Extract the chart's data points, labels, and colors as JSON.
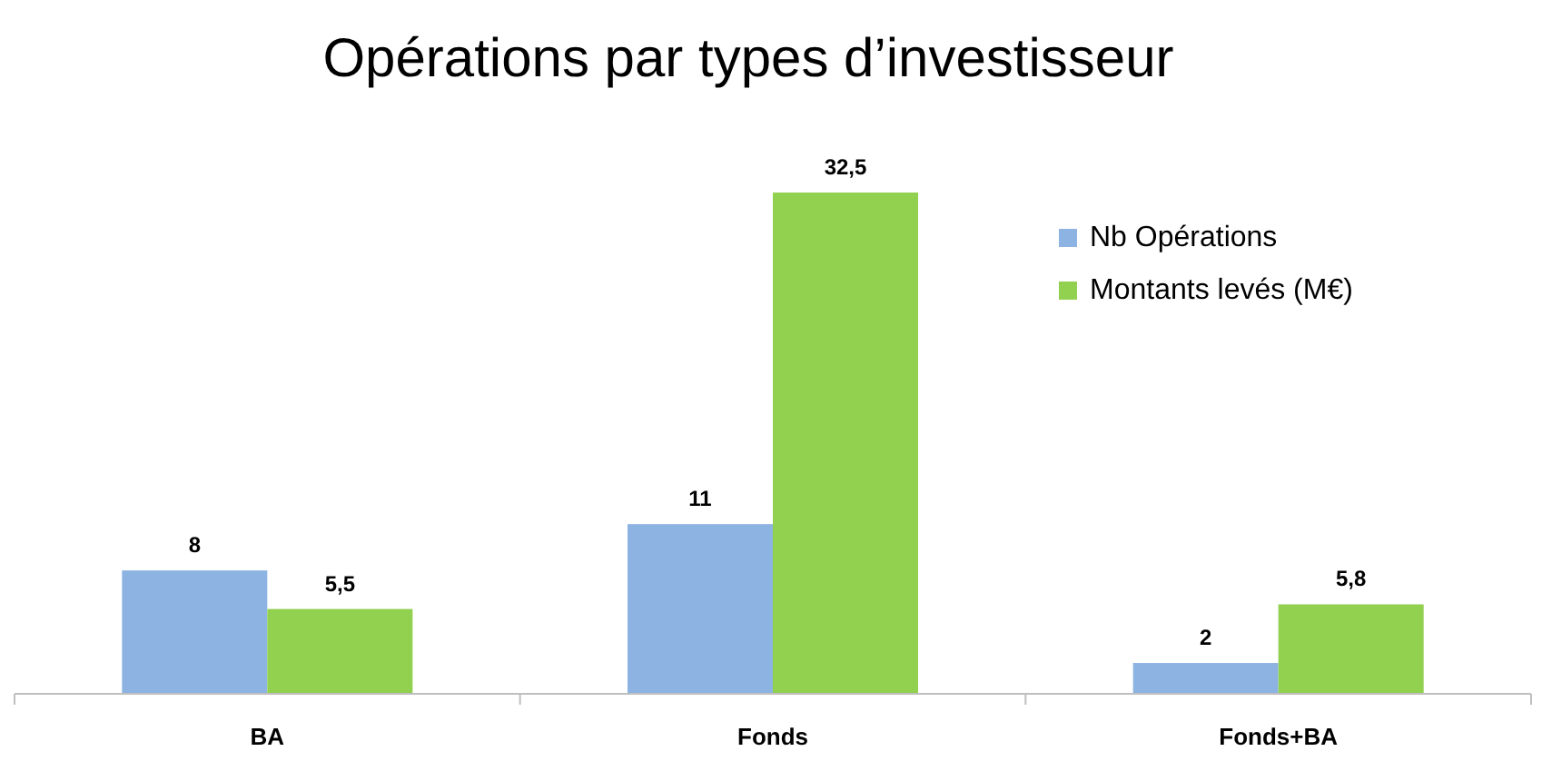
{
  "chart_data": {
    "type": "bar",
    "title": "Opérations par types d’investisseur",
    "categories": [
      "BA",
      "Fonds",
      "Fonds+BA"
    ],
    "series": [
      {
        "name": "Nb Opérations",
        "color": "#8db3e2",
        "values": [
          8,
          11,
          2
        ],
        "value_labels": [
          "8",
          "11",
          "2"
        ]
      },
      {
        "name": "Montants levés (M€)",
        "color": "#92d050",
        "values": [
          5.5,
          32.5,
          5.8
        ],
        "value_labels": [
          "5,5",
          "32,5",
          "5,8"
        ]
      }
    ],
    "legend": "top right"
  }
}
